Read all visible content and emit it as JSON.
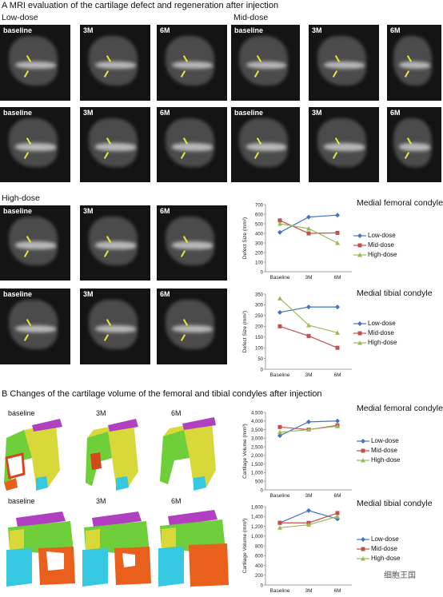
{
  "figure": {
    "section_a_title": "A  MRI evaluation of the cartilage defect and regeneration after injection",
    "section_b_title": "B  Changes of the cartilage volume of the femoral and tibial condyles after injection",
    "group_low": "Low-dose",
    "group_mid": "Mid-dose",
    "group_high": "High-dose",
    "tp_baseline": "baseline",
    "tp_3m": "3M",
    "tp_6m": "6M",
    "watermark": "细胞王国"
  },
  "colors": {
    "low": "#4472c4",
    "mid": "#c0504d",
    "high": "#9bbb59"
  },
  "chart_data": [
    {
      "id": "a-femoral",
      "type": "line",
      "title": "Medial femoral condyle",
      "categories": [
        "Baseline",
        "3M",
        "6M"
      ],
      "ylabel": "Defect Size (mm²)",
      "ylim": [
        0,
        700
      ],
      "yticks": [
        "0",
        "100",
        "200",
        "300",
        "400",
        "500",
        "600",
        "700"
      ],
      "series": [
        {
          "name": "Low-dose",
          "values": [
            410,
            570,
            590
          ]
        },
        {
          "name": "Mid-dose",
          "values": [
            535,
            400,
            405
          ]
        },
        {
          "name": "High-dose",
          "values": [
            500,
            450,
            300
          ]
        }
      ]
    },
    {
      "id": "a-tibial",
      "type": "line",
      "title": "Medial tibial condyle",
      "categories": [
        "Baseline",
        "3M",
        "6M"
      ],
      "ylabel": "Defect Size (mm²)",
      "ylim": [
        0,
        350
      ],
      "yticks": [
        "0",
        "50",
        "100",
        "150",
        "200",
        "250",
        "300",
        "350"
      ],
      "series": [
        {
          "name": "Low-dose",
          "values": [
            265,
            290,
            290
          ]
        },
        {
          "name": "Mid-dose",
          "values": [
            200,
            155,
            100
          ]
        },
        {
          "name": "High-dose",
          "values": [
            330,
            205,
            170
          ]
        }
      ]
    },
    {
      "id": "b-femoral",
      "type": "line",
      "title": "Medial femoral condyle",
      "categories": [
        "Baseline",
        "3M",
        "6M"
      ],
      "ylabel": "Cartilage Volume (mm³)",
      "ylim": [
        0,
        4500
      ],
      "yticks": [
        "0",
        "500",
        "1,000",
        "1,500",
        "2,000",
        "2,500",
        "3,000",
        "3,500",
        "4,000",
        "4,500"
      ],
      "series": [
        {
          "name": "Low-dose",
          "values": [
            3150,
            3950,
            4000
          ]
        },
        {
          "name": "Mid-dose",
          "values": [
            3650,
            3500,
            3750
          ]
        },
        {
          "name": "High-dose",
          "values": [
            3350,
            3500,
            3700
          ]
        }
      ]
    },
    {
      "id": "b-tibial",
      "type": "line",
      "title": "Medial tibial condyle",
      "categories": [
        "Baseline",
        "3M",
        "6M"
      ],
      "ylabel": "Cartilage Volume (mm³)",
      "ylim": [
        0,
        1600
      ],
      "yticks": [
        "0",
        "200",
        "400",
        "600",
        "800",
        "1,000",
        "1,200",
        "1,400",
        "1,600"
      ],
      "series": [
        {
          "name": "Low-dose",
          "values": [
            1270,
            1520,
            1350
          ]
        },
        {
          "name": "Mid-dose",
          "values": [
            1270,
            1270,
            1470
          ]
        },
        {
          "name": "High-dose",
          "values": [
            1170,
            1230,
            1400
          ]
        }
      ]
    }
  ]
}
